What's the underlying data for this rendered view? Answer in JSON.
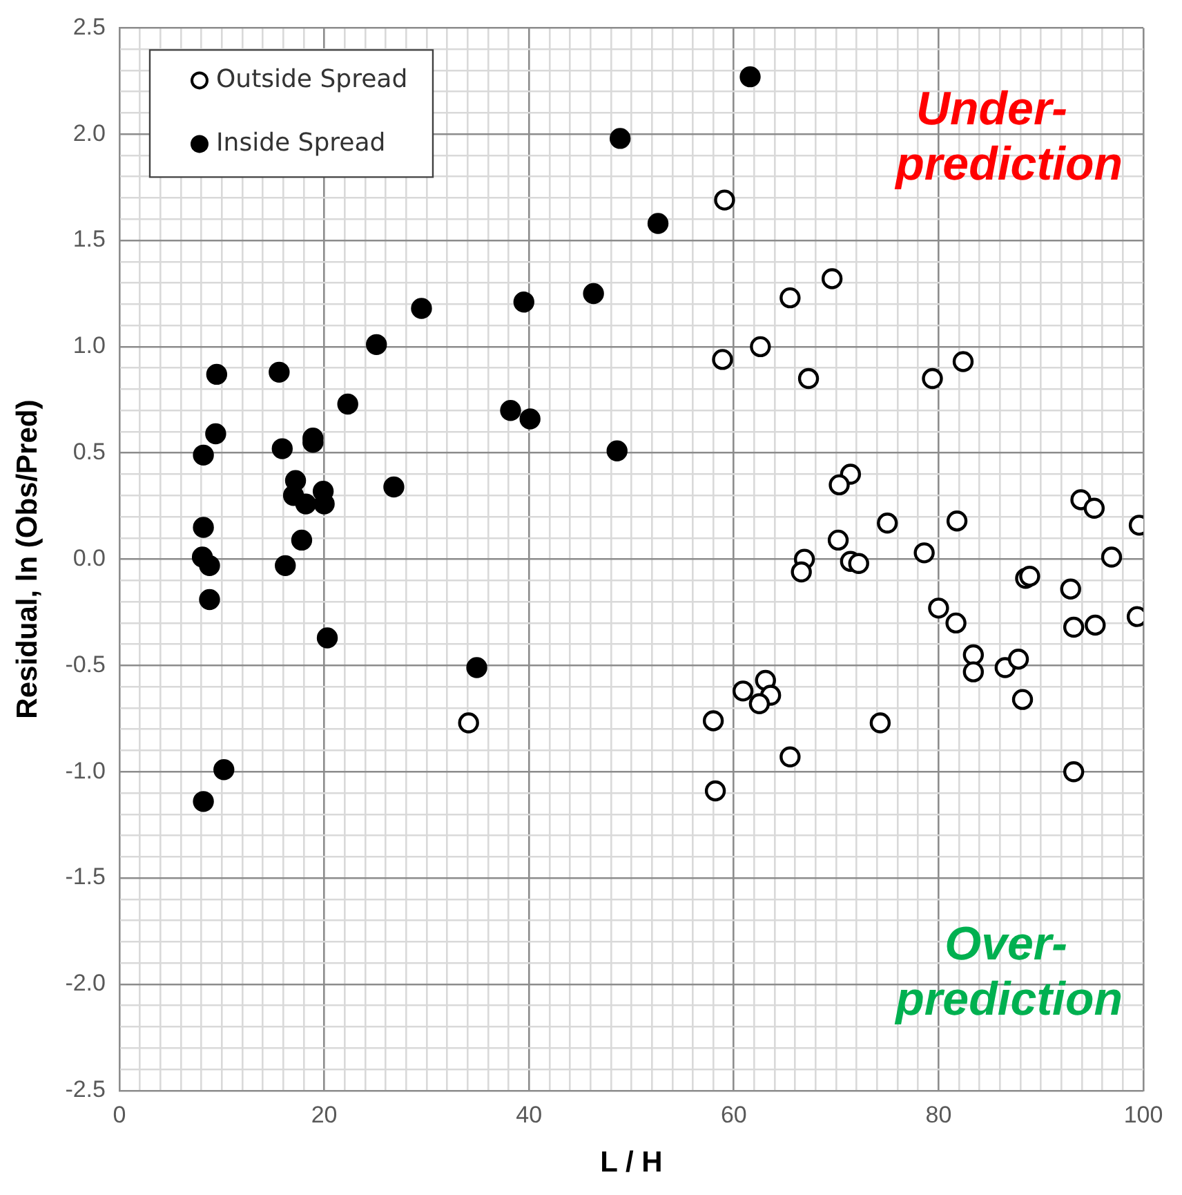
{
  "chart_data": {
    "type": "scatter",
    "xlabel": "L / H",
    "ylabel": "Residual, ln (Obs/Pred)",
    "xlim": [
      0,
      100
    ],
    "ylim": [
      -2.5,
      2.5
    ],
    "xticks": [
      0,
      {
        "value": 2,
        "label": null
      },
      {
        "value": 4,
        "label": null
      },
      {
        "value": 6,
        "label": null
      },
      {
        "value": 8,
        "label": null
      },
      {
        "value": 10,
        "label": null
      },
      {
        "value": 12,
        "label": null
      },
      {
        "value": 14,
        "label": null
      },
      {
        "value": 16,
        "label": null
      },
      {
        "value": 18,
        "label": null
      },
      20,
      {
        "value": 22,
        "label": null
      },
      {
        "value": 24,
        "label": null
      },
      {
        "value": 26,
        "label": null
      },
      {
        "value": 28,
        "label": null
      },
      {
        "value": 30,
        "label": null
      },
      {
        "value": 32,
        "label": null
      },
      {
        "value": 34,
        "label": null
      },
      {
        "value": 36,
        "label": null
      },
      {
        "value": 38,
        "label": null
      },
      40,
      {
        "value": 42,
        "label": null
      },
      {
        "value": 44,
        "label": null
      },
      {
        "value": 46,
        "label": null
      },
      {
        "value": 48,
        "label": null
      },
      {
        "value": 50,
        "label": null
      },
      {
        "value": 52,
        "label": null
      },
      {
        "value": 54,
        "label": null
      },
      {
        "value": 56,
        "label": null
      },
      {
        "value": 58,
        "label": null
      },
      60,
      {
        "value": 62,
        "label": null
      },
      {
        "value": 64,
        "label": null
      },
      {
        "value": 66,
        "label": null
      },
      {
        "value": 68,
        "label": null
      },
      {
        "value": 70,
        "label": null
      },
      {
        "value": 72,
        "label": null
      },
      {
        "value": 74,
        "label": null
      },
      {
        "value": 76,
        "label": null
      },
      {
        "value": 78,
        "label": null
      },
      80,
      {
        "value": 82,
        "label": null
      },
      {
        "value": 84,
        "label": null
      },
      {
        "value": 86,
        "label": null
      },
      {
        "value": 88,
        "label": null
      },
      {
        "value": 90,
        "label": null
      },
      {
        "value": 92,
        "label": null
      },
      {
        "value": 94,
        "label": null
      },
      {
        "value": 96,
        "label": null
      },
      {
        "value": 98,
        "label": null
      },
      100
    ],
    "yticks": [
      {
        "value": -2.5,
        "label": "-2.5"
      },
      {
        "value": -2.4,
        "label": null
      },
      {
        "value": -2.3,
        "label": null
      },
      {
        "value": -2.2,
        "label": null
      },
      {
        "value": -2.1,
        "label": null
      },
      {
        "value": -2,
        "label": "-2.0"
      },
      {
        "value": -1.9,
        "label": null
      },
      {
        "value": -1.8,
        "label": null
      },
      {
        "value": -1.7,
        "label": null
      },
      {
        "value": -1.6,
        "label": null
      },
      {
        "value": -1.5,
        "label": "-1.5"
      },
      {
        "value": -1.4,
        "label": null
      },
      {
        "value": -1.3,
        "label": null
      },
      {
        "value": -1.2,
        "label": null
      },
      {
        "value": -1.1,
        "label": null
      },
      {
        "value": -1,
        "label": "-1.0"
      },
      {
        "value": -0.9,
        "label": null
      },
      {
        "value": -0.8,
        "label": null
      },
      {
        "value": -0.7,
        "label": null
      },
      {
        "value": -0.6,
        "label": null
      },
      {
        "value": -0.5,
        "label": "-0.5"
      },
      {
        "value": -0.4,
        "label": null
      },
      {
        "value": -0.3,
        "label": null
      },
      {
        "value": -0.2,
        "label": null
      },
      {
        "value": -0.1,
        "label": null
      },
      {
        "value": 0,
        "label": "0.0"
      },
      {
        "value": 0.1,
        "label": null
      },
      {
        "value": 0.2,
        "label": null
      },
      {
        "value": 0.3,
        "label": null
      },
      {
        "value": 0.4,
        "label": null
      },
      {
        "value": 0.5,
        "label": "0.5"
      },
      {
        "value": 0.6,
        "label": null
      },
      {
        "value": 0.7,
        "label": null
      },
      {
        "value": 0.8,
        "label": null
      },
      {
        "value": 0.9,
        "label": null
      },
      {
        "value": 1,
        "label": "1.0"
      },
      {
        "value": 1.1,
        "label": null
      },
      {
        "value": 1.2,
        "label": null
      },
      {
        "value": 1.3,
        "label": null
      },
      {
        "value": 1.4,
        "label": null
      },
      {
        "value": 1.5,
        "label": "1.5"
      },
      {
        "value": 1.6,
        "label": null
      },
      {
        "value": 1.7,
        "label": null
      },
      {
        "value": 1.8,
        "label": null
      },
      {
        "value": 1.9,
        "label": null
      },
      {
        "value": 2,
        "label": "2.0"
      },
      {
        "value": 2.1,
        "label": null
      },
      {
        "value": 2.2,
        "label": null
      },
      {
        "value": 2.3,
        "label": null
      },
      {
        "value": 2.4,
        "label": null
      },
      {
        "value": 2.5,
        "label": "2.5"
      }
    ],
    "grid": true,
    "legend": "top left",
    "marker": "circle",
    "annotations": [
      "Under-\nprediction",
      "Over-\nprediction"
    ],
    "series": [
      {
        "name": "Outside Spread",
        "color": "#ffffff",
        "x": [
          59.1,
          69.6,
          65.5,
          62.6,
          58.9,
          67.3,
          82.4,
          79.4,
          71.4,
          70.3,
          75.0,
          81.8,
          93.9,
          95.2,
          99.6,
          96.9,
          78.6,
          70.2,
          66.9,
          66.6,
          71.4,
          72.2,
          88.5,
          88.9,
          80.0,
          81.7,
          92.9,
          93.2,
          95.3,
          99.4,
          83.4,
          83.4,
          86.5,
          87.8,
          88.2,
          60.9,
          63.1,
          63.6,
          62.5,
          58.0,
          34.1,
          74.3,
          65.5,
          58.2,
          93.2
        ],
        "values": [
          1.69,
          1.32,
          1.23,
          1.0,
          0.94,
          0.85,
          0.93,
          0.85,
          0.4,
          0.35,
          0.17,
          0.18,
          0.28,
          0.24,
          0.16,
          0.01,
          0.03,
          0.09,
          0.0,
          -0.06,
          -0.01,
          -0.02,
          -0.09,
          -0.08,
          -0.23,
          -0.3,
          -0.14,
          -0.32,
          -0.31,
          -0.27,
          -0.45,
          -0.53,
          -0.51,
          -0.47,
          -0.66,
          -0.62,
          -0.57,
          -0.64,
          -0.68,
          -0.76,
          -0.77,
          -0.77,
          -0.93,
          -1.09,
          -1.0
        ]
      },
      {
        "name": "Inside Spread",
        "color": "#000000",
        "x": [
          61.6,
          48.9,
          52.6,
          46.3,
          39.5,
          29.5,
          25.1,
          9.5,
          15.6,
          22.3,
          38.2,
          40.1,
          9.4,
          18.9,
          18.9,
          8.2,
          15.9,
          48.6,
          26.8,
          17.2,
          17.0,
          19.9,
          18.2,
          20.0,
          8.2,
          17.8,
          8.1,
          8.8,
          16.2,
          8.8,
          20.3,
          34.9,
          10.2,
          8.2
        ],
        "values": [
          2.27,
          1.98,
          1.58,
          1.25,
          1.21,
          1.18,
          1.01,
          0.87,
          0.88,
          0.73,
          0.7,
          0.66,
          0.59,
          0.57,
          0.55,
          0.49,
          0.52,
          0.51,
          0.34,
          0.37,
          0.3,
          0.32,
          0.26,
          0.26,
          0.15,
          0.09,
          0.01,
          -0.03,
          -0.03,
          -0.19,
          -0.37,
          -0.51,
          -0.99,
          -1.14
        ]
      }
    ]
  }
}
